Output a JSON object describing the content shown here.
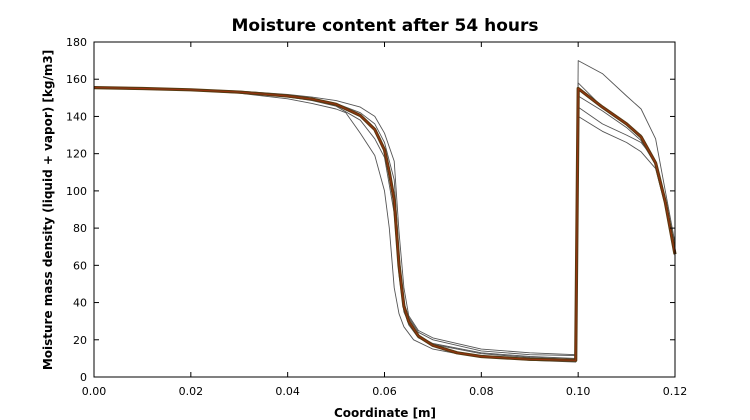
{
  "chart_data": {
    "type": "line",
    "title": "Moisture content after 54 hours",
    "xlabel": "Coordinate [m]",
    "ylabel": "Moisture mass density (liquid + vapor) [kg/m3]",
    "xlim": [
      0.0,
      0.12
    ],
    "ylim": [
      0,
      180
    ],
    "xticks": [
      "0.00",
      "0.02",
      "0.04",
      "0.06",
      "0.08",
      "0.10",
      "0.12"
    ],
    "yticks": [
      "0",
      "20",
      "40",
      "60",
      "80",
      "100",
      "120",
      "140",
      "160",
      "180"
    ],
    "grid": false,
    "legend": "none",
    "colors": {
      "ensemble": "#555555",
      "mean": "#5a3a10",
      "mean_accent": "#b03010"
    },
    "series": [
      {
        "role": "ensemble",
        "x": [
          0.0,
          0.01,
          0.02,
          0.03,
          0.04,
          0.045,
          0.05,
          0.052,
          0.055,
          0.058,
          0.06,
          0.061,
          0.062,
          0.063,
          0.064,
          0.066,
          0.07,
          0.075,
          0.08,
          0.09,
          0.0995,
          0.1,
          0.105,
          0.11,
          0.113,
          0.116,
          0.118,
          0.12
        ],
        "y": [
          155.5,
          155,
          154,
          152.5,
          149.5,
          147,
          144,
          142,
          131,
          119,
          100,
          80,
          48,
          34,
          27,
          20,
          15,
          12.5,
          11,
          9,
          8,
          145,
          136,
          130,
          126,
          116,
          96,
          68
        ]
      },
      {
        "role": "ensemble",
        "x": [
          0.0,
          0.01,
          0.02,
          0.03,
          0.04,
          0.045,
          0.05,
          0.055,
          0.058,
          0.06,
          0.062,
          0.063,
          0.064,
          0.065,
          0.067,
          0.07,
          0.08,
          0.09,
          0.0995,
          0.1,
          0.105,
          0.11,
          0.113,
          0.116,
          0.118,
          0.12
        ],
        "y": [
          155.5,
          155,
          154.2,
          153,
          150.5,
          148.5,
          145.5,
          138,
          128,
          118,
          88,
          55,
          35,
          29,
          22,
          18,
          13,
          11,
          10,
          140,
          132,
          126,
          121,
          112,
          92,
          66
        ]
      },
      {
        "role": "ensemble",
        "x": [
          0.0,
          0.01,
          0.02,
          0.03,
          0.04,
          0.045,
          0.05,
          0.055,
          0.058,
          0.06,
          0.062,
          0.063,
          0.064,
          0.065,
          0.067,
          0.07,
          0.08,
          0.09,
          0.0995,
          0.1,
          0.105,
          0.11,
          0.113,
          0.116,
          0.118,
          0.12
        ],
        "y": [
          155.5,
          155.1,
          154.4,
          153.3,
          151.2,
          149.5,
          147,
          142,
          136,
          126,
          106,
          66,
          40,
          32,
          24,
          20,
          14,
          12,
          11.5,
          158,
          145,
          136,
          130,
          116,
          94,
          70
        ]
      },
      {
        "role": "ensemble",
        "x": [
          0.0,
          0.01,
          0.02,
          0.03,
          0.04,
          0.045,
          0.05,
          0.055,
          0.058,
          0.06,
          0.062,
          0.063,
          0.064,
          0.065,
          0.067,
          0.07,
          0.08,
          0.09,
          0.0995,
          0.1,
          0.105,
          0.11,
          0.113,
          0.116,
          0.118,
          0.12
        ],
        "y": [
          155.5,
          155.2,
          154.6,
          153.6,
          151.8,
          150.4,
          148.5,
          145,
          140,
          131,
          116,
          78,
          48,
          33,
          25,
          21,
          15,
          13,
          12,
          170,
          163,
          151,
          144,
          128,
          100,
          72
        ]
      },
      {
        "role": "ensemble",
        "x": [
          0.0,
          0.01,
          0.02,
          0.03,
          0.04,
          0.045,
          0.05,
          0.055,
          0.058,
          0.06,
          0.062,
          0.063,
          0.064,
          0.065,
          0.067,
          0.07,
          0.08,
          0.09,
          0.0995,
          0.1,
          0.105,
          0.11,
          0.113,
          0.116,
          0.118,
          0.12
        ],
        "y": [
          155.5,
          155,
          154.2,
          153,
          151,
          149.3,
          146.8,
          140,
          133,
          121,
          98,
          58,
          36,
          28,
          21,
          17.5,
          12.5,
          10.5,
          9.5,
          151,
          143,
          134,
          127,
          114,
          93,
          65
        ]
      },
      {
        "role": "mean",
        "x": [
          0.0,
          0.01,
          0.02,
          0.03,
          0.04,
          0.045,
          0.05,
          0.055,
          0.058,
          0.06,
          0.061,
          0.062,
          0.063,
          0.064,
          0.065,
          0.067,
          0.07,
          0.075,
          0.08,
          0.09,
          0.0995,
          0.1,
          0.105,
          0.11,
          0.113,
          0.116,
          0.118,
          0.12
        ],
        "y": [
          155.5,
          155,
          154.3,
          153.1,
          151,
          149.3,
          146.5,
          140.5,
          133,
          122,
          110,
          95,
          60,
          38,
          30,
          22,
          17,
          13,
          11,
          9.5,
          9,
          155,
          145,
          136,
          129,
          115,
          94,
          66
        ]
      }
    ]
  }
}
